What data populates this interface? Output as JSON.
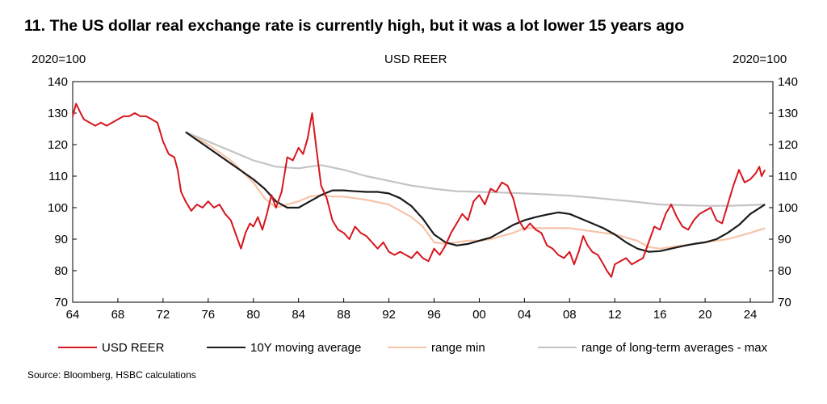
{
  "title": "11.  The US dollar real exchange rate is currently high, but it was a lot lower 15 years ago",
  "source": "Source: Bloomberg, HSBC calculations",
  "chart_data": {
    "type": "line",
    "title": "USD REER",
    "ylabel_left": "2020=100",
    "ylabel_right": "2020=100",
    "ylim": [
      70,
      140
    ],
    "yticks": [
      70,
      80,
      90,
      100,
      110,
      120,
      130,
      140
    ],
    "xlim": [
      1964,
      2026
    ],
    "xticks": [
      1964,
      1968,
      1972,
      1976,
      1980,
      1984,
      1988,
      1992,
      1996,
      2000,
      2004,
      2008,
      2012,
      2016,
      2020,
      2024
    ],
    "xtick_labels": [
      "64",
      "68",
      "72",
      "76",
      "80",
      "84",
      "88",
      "92",
      "96",
      "00",
      "04",
      "08",
      "12",
      "16",
      "20",
      "24"
    ],
    "grid": false,
    "legend_position": "bottom",
    "series": [
      {
        "name": "USD REER",
        "color": "#d7161f",
        "x": [
          1964.0,
          1964.3,
          1964.7,
          1965.0,
          1965.5,
          1966.0,
          1966.5,
          1967.0,
          1967.5,
          1968.0,
          1968.5,
          1969.0,
          1969.5,
          1970.0,
          1970.5,
          1971.0,
          1971.5,
          1972.0,
          1972.5,
          1973.0,
          1973.3,
          1973.6,
          1974.0,
          1974.5,
          1975.0,
          1975.5,
          1976.0,
          1976.5,
          1977.0,
          1977.5,
          1978.0,
          1978.5,
          1978.9,
          1979.3,
          1979.7,
          1980.0,
          1980.4,
          1980.8,
          1981.2,
          1981.6,
          1982.0,
          1982.5,
          1983.0,
          1983.5,
          1984.0,
          1984.4,
          1984.8,
          1985.2,
          1985.6,
          1986.0,
          1986.5,
          1987.0,
          1987.5,
          1988.0,
          1988.5,
          1989.0,
          1989.5,
          1990.0,
          1990.5,
          1991.0,
          1991.5,
          1992.0,
          1992.5,
          1993.0,
          1993.5,
          1994.0,
          1994.5,
          1995.0,
          1995.5,
          1996.0,
          1996.5,
          1997.0,
          1997.5,
          1998.0,
          1998.5,
          1999.0,
          1999.5,
          2000.0,
          2000.5,
          2001.0,
          2001.5,
          2002.0,
          2002.5,
          2003.0,
          2003.5,
          2004.0,
          2004.5,
          2005.0,
          2005.5,
          2006.0,
          2006.5,
          2007.0,
          2007.5,
          2008.0,
          2008.4,
          2008.8,
          2009.2,
          2009.6,
          2010.0,
          2010.5,
          2011.0,
          2011.3,
          2011.7,
          2012.0,
          2012.5,
          2013.0,
          2013.5,
          2014.0,
          2014.5,
          2015.0,
          2015.5,
          2016.0,
          2016.5,
          2017.0,
          2017.5,
          2018.0,
          2018.5,
          2019.0,
          2019.5,
          2020.0,
          2020.5,
          2021.0,
          2021.5,
          2022.0,
          2022.5,
          2023.0,
          2023.5,
          2024.0,
          2024.5,
          2024.8,
          2025.0,
          2025.3
        ],
        "values": [
          129,
          133,
          130,
          128,
          127,
          126,
          127,
          126,
          127,
          128,
          129,
          129,
          130,
          129,
          129,
          128,
          127,
          121,
          117,
          116,
          112,
          105,
          102,
          99,
          101,
          100,
          102,
          100,
          101,
          98,
          96,
          91,
          87,
          92,
          95,
          94,
          97,
          93,
          98,
          104,
          100,
          105,
          116,
          115,
          119,
          117,
          122,
          130,
          118,
          107,
          103,
          96,
          93,
          92,
          90,
          94,
          92,
          91,
          89,
          87,
          89,
          86,
          85,
          86,
          85,
          84,
          86,
          84,
          83,
          87,
          85,
          88,
          92,
          95,
          98,
          96,
          102,
          104,
          101,
          106,
          105,
          108,
          107,
          103,
          96,
          93,
          95,
          93,
          92,
          88,
          87,
          85,
          84,
          86,
          82,
          86,
          91,
          88,
          86,
          85,
          82,
          80,
          78,
          82,
          83,
          84,
          82,
          83,
          84,
          89,
          94,
          93,
          98,
          101,
          97,
          94,
          93,
          96,
          98,
          99,
          100,
          96,
          95,
          101,
          107,
          112,
          108,
          109,
          111,
          113,
          110,
          112
        ]
      },
      {
        "name": "10Y moving average",
        "color": "#1a1a1a",
        "x": [
          1974.0,
          1976.0,
          1978.0,
          1980.0,
          1981.0,
          1982.0,
          1983.0,
          1984.0,
          1985.0,
          1986.0,
          1987.0,
          1988.0,
          1989.0,
          1990.0,
          1991.0,
          1992.0,
          1993.0,
          1994.0,
          1995.0,
          1996.0,
          1997.0,
          1998.0,
          1999.0,
          2000.0,
          2001.0,
          2002.0,
          2003.0,
          2004.0,
          2005.0,
          2006.0,
          2007.0,
          2008.0,
          2009.0,
          2010.0,
          2011.0,
          2012.0,
          2013.0,
          2014.0,
          2015.0,
          2016.0,
          2017.0,
          2018.0,
          2019.0,
          2020.0,
          2021.0,
          2022.0,
          2023.0,
          2024.0,
          2025.3
        ],
        "values": [
          124,
          119,
          114,
          109,
          106,
          102,
          100,
          100,
          102,
          104,
          105.5,
          105.5,
          105.2,
          105,
          105,
          104.5,
          103,
          100.5,
          96.5,
          91.5,
          89,
          88,
          88.5,
          89.5,
          90.5,
          92.5,
          94.5,
          96,
          97,
          97.8,
          98.5,
          98,
          96.5,
          95,
          93.5,
          91.5,
          89,
          87,
          86,
          86.2,
          87,
          87.8,
          88.5,
          89,
          90,
          92,
          94.5,
          98,
          101
        ]
      },
      {
        "name": "range min",
        "color": "#f5c4a8",
        "x": [
          1974.0,
          1976.0,
          1978.0,
          1980.0,
          1981.0,
          1982.0,
          1983.0,
          1984.0,
          1985.0,
          1986.0,
          1987.0,
          1988.0,
          1990.0,
          1992.0,
          1994.0,
          1995.0,
          1996.0,
          1997.0,
          1998.0,
          1999.0,
          2000.0,
          2001.0,
          2002.0,
          2003.0,
          2004.0,
          2006.0,
          2008.0,
          2010.0,
          2012.0,
          2014.0,
          2015.0,
          2016.0,
          2018.0,
          2020.0,
          2022.0,
          2024.0,
          2025.3
        ],
        "values": [
          124,
          120,
          115,
          108,
          103,
          100,
          101,
          102,
          103.5,
          104,
          103.5,
          103.5,
          102.5,
          101,
          97,
          94,
          89,
          88.5,
          89,
          89.5,
          89.5,
          90,
          91,
          92,
          93.5,
          93.5,
          93.5,
          92.5,
          91.5,
          89.5,
          87.5,
          87,
          88,
          89,
          90,
          92,
          93.5
        ]
      },
      {
        "name": "range of long-term averages - max",
        "color": "#c4c4c4",
        "x": [
          1974.0,
          1976.0,
          1978.0,
          1980.0,
          1982.0,
          1984.0,
          1986.0,
          1988.0,
          1990.0,
          1992.0,
          1994.0,
          1996.0,
          1998.0,
          2000.0,
          2002.0,
          2004.0,
          2006.0,
          2008.0,
          2010.0,
          2012.0,
          2014.0,
          2016.0,
          2018.0,
          2020.0,
          2022.0,
          2024.0,
          2025.3
        ],
        "values": [
          124,
          121,
          118,
          115,
          113,
          112.5,
          113.5,
          112,
          110,
          108.5,
          107,
          106,
          105.2,
          105,
          104.8,
          104.5,
          104.2,
          103.8,
          103.2,
          102.5,
          101.8,
          101,
          100.8,
          100.6,
          100.6,
          100.8,
          101
        ]
      }
    ]
  }
}
